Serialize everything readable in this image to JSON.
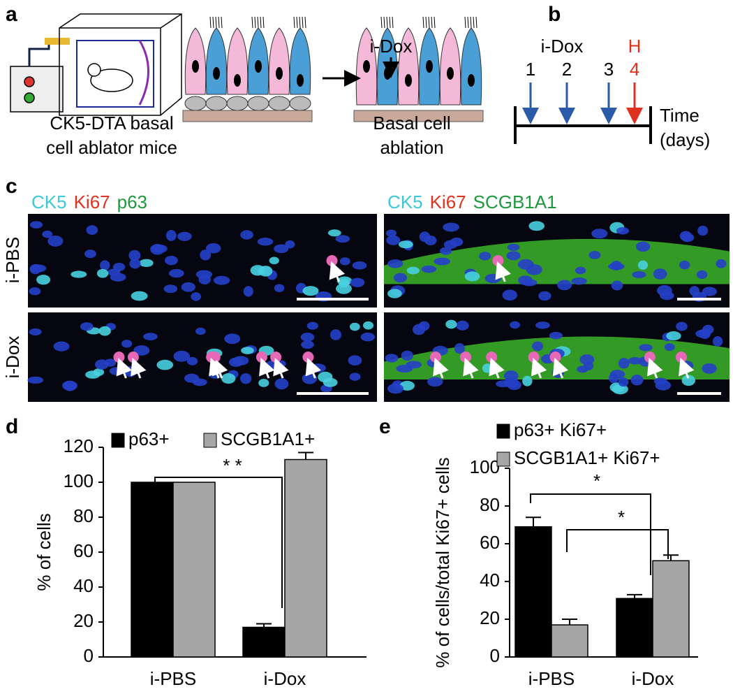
{
  "panel_labels": [
    "a",
    "b",
    "c",
    "d",
    "e"
  ],
  "panel_a": {
    "left_caption": [
      "CK5-DTA basal",
      "cell ablator mice"
    ],
    "treatment": "i-Dox",
    "right_caption": [
      "Basal cell",
      "ablation"
    ]
  },
  "panel_b": {
    "treatment": "i-Dox",
    "harvest": "H",
    "days": [
      "1",
      "2",
      "3",
      "4"
    ],
    "axis_label": [
      "Time",
      "(days)"
    ]
  },
  "panel_c": {
    "stain_left": [
      "CK5",
      "Ki67",
      "p63"
    ],
    "stain_right": [
      "CK5",
      "Ki67",
      "SCGB1A1"
    ],
    "rows": [
      "i-PBS",
      "i-Dox"
    ]
  },
  "chart_data": [
    {
      "type": "bar",
      "y_label": "% of cells",
      "categories": [
        "i-PBS",
        "i-Dox"
      ],
      "series": [
        {
          "name": "p63+",
          "color": "#000000",
          "values": [
            100,
            17
          ],
          "errors": [
            null,
            2
          ]
        },
        {
          "name": "SCGB1A1+",
          "color": "#a6a6a6",
          "values": [
            100,
            113
          ],
          "errors": [
            null,
            4
          ]
        }
      ],
      "ylim": [
        0,
        120
      ],
      "yticks": [
        0,
        20,
        40,
        60,
        80,
        100,
        120
      ],
      "annotations": [
        "* *"
      ]
    },
    {
      "type": "bar",
      "y_label": "% of cells/total Ki67+ cells",
      "categories": [
        "i-PBS",
        "i-Dox"
      ],
      "series": [
        {
          "name": "p63+ Ki67+",
          "color": "#000000",
          "values": [
            69,
            31
          ],
          "errors": [
            5,
            2
          ]
        },
        {
          "name": "SCGB1A1+ Ki67+",
          "color": "#a6a6a6",
          "values": [
            17,
            51
          ],
          "errors": [
            3,
            3
          ]
        }
      ],
      "ylim": [
        0,
        100
      ],
      "yticks": [
        0,
        20,
        40,
        60,
        80,
        100
      ],
      "annotations": [
        "*",
        "*"
      ]
    }
  ]
}
